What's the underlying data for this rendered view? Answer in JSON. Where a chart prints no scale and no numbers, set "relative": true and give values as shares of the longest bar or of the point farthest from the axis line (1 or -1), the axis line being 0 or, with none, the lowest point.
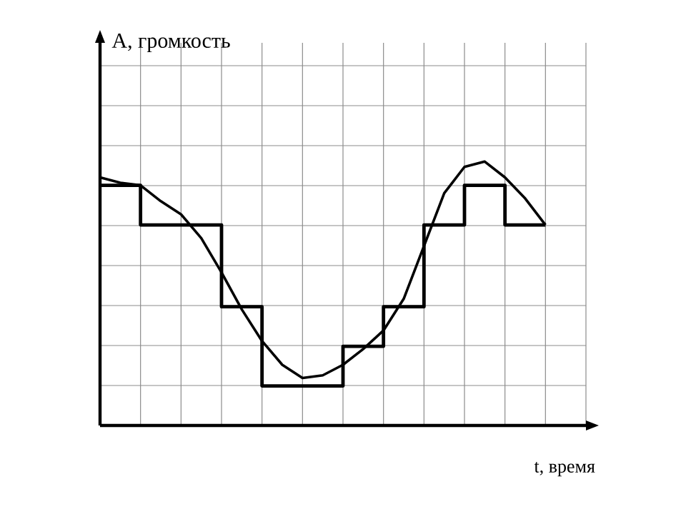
{
  "chart_data": {
    "type": "line",
    "relative": true,
    "xlabel": "t, время",
    "annotations": [
      "A, громкость"
    ],
    "grid": true,
    "categories": [
      null,
      null,
      null,
      null,
      null,
      null,
      null,
      null,
      null,
      null,
      null,
      null,
      null,
      null,
      null,
      null,
      null,
      null,
      null,
      null,
      null,
      null,
      null
    ],
    "series": [
      {
        "type": "step",
        "color": "#000000",
        "values": [
          0.91,
          0.91,
          0.76,
          0.76,
          0.76,
          0.76,
          0.45,
          0.45,
          0.15,
          0.15,
          0.15,
          0.15,
          0.3,
          0.3,
          0.45,
          0.45,
          0.76,
          0.76,
          0.91,
          0.91,
          0.76,
          0.76,
          0.76
        ]
      },
      {
        "color": "#000000",
        "values": [
          0.94,
          0.92,
          0.91,
          0.85,
          0.8,
          0.71,
          0.58,
          0.44,
          0.32,
          0.23,
          0.18,
          0.19,
          0.23,
          0.29,
          0.36,
          0.48,
          0.68,
          0.88,
          0.98,
          1.0,
          0.94,
          0.86,
          0.76
        ]
      }
    ]
  }
}
